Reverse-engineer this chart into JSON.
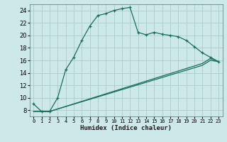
{
  "title": "",
  "xlabel": "Humidex (Indice chaleur)",
  "background_color": "#cce8e8",
  "grid_color": "#aacccc",
  "line_color": "#1a6e5e",
  "xlim": [
    -0.5,
    23.5
  ],
  "ylim": [
    7,
    25
  ],
  "x_ticks": [
    0,
    1,
    2,
    3,
    4,
    5,
    6,
    7,
    8,
    9,
    10,
    11,
    12,
    13,
    14,
    15,
    16,
    17,
    18,
    19,
    20,
    21,
    22,
    23
  ],
  "x_tick_labels": [
    "0",
    "1",
    "2",
    "3",
    "4",
    "5",
    "6",
    "7",
    "8",
    "9",
    "10",
    "11",
    "12",
    "13",
    "14",
    "15",
    "16",
    "17",
    "18",
    "19",
    "20",
    "21",
    "22",
    "23"
  ],
  "y_ticks": [
    8,
    10,
    12,
    14,
    16,
    18,
    20,
    22,
    24
  ],
  "series1_x": [
    0,
    1,
    2,
    3,
    4,
    5,
    6,
    7,
    8,
    9,
    10,
    11,
    12,
    13,
    14,
    15,
    16,
    17,
    18,
    19,
    20,
    21,
    22,
    23
  ],
  "series1_y": [
    9.0,
    7.8,
    7.8,
    10.0,
    14.5,
    16.5,
    19.2,
    21.5,
    23.2,
    23.5,
    24.0,
    24.3,
    24.5,
    20.5,
    20.1,
    20.5,
    20.2,
    20.0,
    19.8,
    19.2,
    18.2,
    17.2,
    16.5,
    15.8
  ],
  "series2_x": [
    0,
    2,
    21,
    22,
    23
  ],
  "series2_y": [
    7.8,
    7.8,
    15.2,
    16.0,
    15.8
  ],
  "series3_x": [
    0,
    2,
    21,
    22,
    23
  ],
  "series3_y": [
    7.8,
    7.8,
    15.5,
    16.3,
    15.8
  ]
}
